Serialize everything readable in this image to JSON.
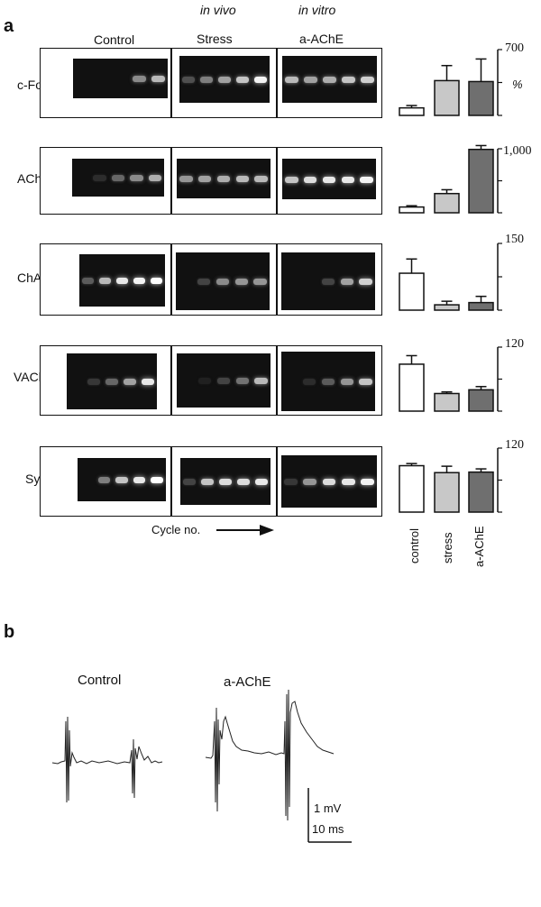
{
  "panel_a": {
    "letter": "a",
    "header_in_vivo": "in vivo",
    "header_in_vitro": "in vitro",
    "conditions": [
      "Control",
      "Stress",
      "a-AChE"
    ],
    "cycle_label": "Cycle no.",
    "bar_xlabels": [
      "control",
      "stress",
      "a-AChE"
    ],
    "bar_colors": [
      "#ffffff",
      "#c8c8c8",
      "#6f6f6f"
    ],
    "percent_symbol": "%",
    "genes": [
      {
        "name": "c-Fos",
        "ymax": "700",
        "bands": [
          [
            0,
            0,
            0,
            0.5,
            0.7
          ],
          [
            0.25,
            0.45,
            0.6,
            0.75,
            0.95
          ],
          [
            0.7,
            0.6,
            0.65,
            0.75,
            0.8
          ]
        ]
      },
      {
        "name": "AChE",
        "ymax": "1,000",
        "bands": [
          [
            0,
            0.1,
            0.35,
            0.5,
            0.65
          ],
          [
            0.55,
            0.6,
            0.65,
            0.7,
            0.7
          ],
          [
            0.75,
            0.85,
            0.9,
            0.9,
            0.95
          ]
        ]
      },
      {
        "name": "ChAT",
        "ymax": "150",
        "bands": [
          [
            0.3,
            0.7,
            0.9,
            0.95,
            1.0
          ],
          [
            0,
            0.2,
            0.5,
            0.55,
            0.55
          ],
          [
            0,
            0,
            0.2,
            0.6,
            0.8
          ]
        ]
      },
      {
        "name": "VAChT",
        "ymax": "120",
        "bands": [
          [
            0,
            0.15,
            0.35,
            0.6,
            0.9
          ],
          [
            0,
            0.05,
            0.2,
            0.4,
            0.7
          ],
          [
            0,
            0.1,
            0.3,
            0.55,
            0.75
          ]
        ]
      },
      {
        "name": "Syn",
        "ymax": "120",
        "bands": [
          [
            0,
            0.45,
            0.75,
            0.9,
            1.0
          ],
          [
            0.2,
            0.75,
            0.85,
            0.85,
            0.9
          ],
          [
            0.15,
            0.55,
            0.85,
            0.9,
            0.95
          ]
        ]
      }
    ]
  },
  "chart_data": [
    {
      "type": "bar",
      "title": "c-Fos",
      "categories": [
        "control",
        "stress",
        "a-AChE"
      ],
      "values": [
        80,
        370,
        360
      ],
      "errors": [
        25,
        160,
        240
      ],
      "ylim": [
        0,
        700
      ],
      "ylabel": "%"
    },
    {
      "type": "bar",
      "title": "AChE",
      "categories": [
        "control",
        "stress",
        "a-AChE"
      ],
      "values": [
        90,
        300,
        990
      ],
      "errors": [
        20,
        60,
        60
      ],
      "ylim": [
        0,
        1000
      ]
    },
    {
      "type": "bar",
      "title": "ChAT",
      "categories": [
        "control",
        "stress",
        "a-AChE"
      ],
      "values": [
        83,
        12,
        17
      ],
      "errors": [
        32,
        8,
        14
      ],
      "ylim": [
        0,
        150
      ]
    },
    {
      "type": "bar",
      "title": "VAChT",
      "categories": [
        "control",
        "stress",
        "a-AChE"
      ],
      "values": [
        88,
        33,
        40
      ],
      "errors": [
        16,
        3,
        6
      ],
      "ylim": [
        0,
        120
      ]
    },
    {
      "type": "bar",
      "title": "Syn",
      "categories": [
        "control",
        "stress",
        "a-AChE"
      ],
      "values": [
        87,
        74,
        75
      ],
      "errors": [
        4,
        12,
        6
      ],
      "ylim": [
        0,
        120
      ]
    }
  ],
  "panel_b": {
    "letter": "b",
    "label_control": "Control",
    "label_aache": "a-AChE",
    "scale_mv": "1 mV",
    "scale_ms": "10 ms"
  }
}
